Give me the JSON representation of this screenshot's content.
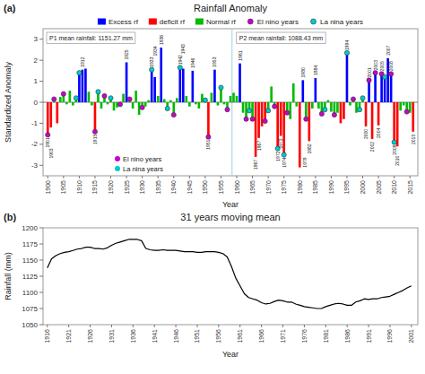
{
  "chart_data": [
    {
      "type": "bar",
      "title": "Rainfall Anomaly",
      "panel_label": "(a)",
      "x_label": "Year",
      "y_label": "Standardized Anomaly",
      "series": [
        {
          "name": "Excess rf",
          "type": "bar",
          "color": "#0000ff",
          "x": [
            1910,
            1911,
            1912,
            1925,
            1933,
            1934,
            1936,
            1942,
            1943,
            1946,
            1953,
            1961,
            1981,
            1985,
            1995,
            2002,
            2004,
            2006,
            2007,
            2008,
            2009
          ],
          "values": [
            1.4,
            1.55,
            1.6,
            1.9,
            1.55,
            1.2,
            2.6,
            1.65,
            1.6,
            1.5,
            1.55,
            1.85,
            1.05,
            1.15,
            2.35,
            1.05,
            1.4,
            1.35,
            1.2,
            2.1,
            1.35
          ]
        },
        {
          "name": "deficit rf",
          "type": "bar",
          "color": "#ff0000",
          "x": [
            1900,
            1901,
            1903,
            1915,
            1951,
            1966,
            1967,
            1968,
            1969,
            1973,
            1974,
            1975,
            1980,
            1983,
            1993,
            1994,
            2001,
            2003,
            2005,
            2010,
            2011,
            2016
          ],
          "values": [
            -1.55,
            -1.2,
            -1.0,
            -1.4,
            -1.65,
            -2.6,
            -1.7,
            -1.15,
            -0.9,
            -2.2,
            -1.6,
            -2.5,
            -3.1,
            -1.85,
            -1.0,
            -0.8,
            -1.15,
            -1.75,
            -1.1,
            -1.9,
            -2.1,
            -1.4
          ]
        },
        {
          "name": "Normal rf",
          "type": "bar",
          "color": "#00bb00",
          "x": [
            1902,
            1904,
            1905,
            1906,
            1907,
            1908,
            1909,
            1913,
            1914,
            1916,
            1917,
            1918,
            1919,
            1920,
            1921,
            1922,
            1923,
            1924,
            1926,
            1927,
            1928,
            1929,
            1930,
            1931,
            1932,
            1935,
            1937,
            1938,
            1939,
            1940,
            1941,
            1944,
            1945,
            1947,
            1948,
            1949,
            1950,
            1952,
            1954,
            1955,
            1956,
            1957,
            1958,
            1959,
            1960,
            1962,
            1963,
            1964,
            1965,
            1970,
            1971,
            1972,
            1976,
            1977,
            1978,
            1979,
            1982,
            1984,
            1986,
            1987,
            1988,
            1989,
            1990,
            1991,
            1992,
            1996,
            1997,
            1998,
            1999,
            2000,
            2012,
            2013,
            2014,
            2015
          ],
          "values": [
            0.15,
            0.25,
            0.4,
            -0.1,
            0.55,
            -0.15,
            0.2,
            0.5,
            -0.15,
            0.5,
            -0.3,
            0.3,
            -0.1,
            0.2,
            -0.4,
            -0.25,
            -0.1,
            0.4,
            0.15,
            -0.3,
            0.55,
            -0.6,
            -0.25,
            -0.2,
            0.1,
            0.3,
            0.15,
            -0.3,
            0.1,
            -0.6,
            0.2,
            0.3,
            -0.2,
            -0.1,
            -0.3,
            0.4,
            0.1,
            0.45,
            -0.15,
            0.7,
            -0.1,
            -0.35,
            0.3,
            0.45,
            0.3,
            -0.5,
            -0.8,
            -0.4,
            -0.8,
            -0.4,
            0.75,
            -0.2,
            -0.5,
            -0.8,
            0.9,
            -0.2,
            -0.8,
            -0.3,
            -0.3,
            -0.55,
            -0.35,
            0.1,
            -0.45,
            -0.6,
            -0.5,
            -0.15,
            0.15,
            -0.5,
            -0.35,
            0.2,
            -0.4,
            -0.15,
            -0.45,
            -0.5
          ]
        },
        {
          "name": "El nino years",
          "type": "scatter",
          "marker": "circle",
          "color": "#cc00cc",
          "x": [
            1900,
            1902,
            1905,
            1915,
            1918,
            1923,
            1926,
            1930,
            1940,
            1951,
            1957,
            1963,
            1965,
            1969,
            1972,
            1976,
            1982,
            1987,
            1991,
            1997,
            2002,
            2004,
            2006,
            2009,
            2014
          ],
          "values": [
            -1.55,
            0.15,
            0.4,
            -1.4,
            0.3,
            -0.1,
            0.15,
            -0.25,
            -0.6,
            -1.65,
            -0.35,
            -0.8,
            -0.8,
            -0.9,
            -0.2,
            -0.5,
            -0.8,
            -0.55,
            -0.6,
            0.15,
            1.05,
            1.4,
            1.35,
            1.35,
            -0.45
          ]
        },
        {
          "name": "La nina years",
          "type": "scatter",
          "marker": "circle",
          "color": "#00cccc",
          "x": [
            1909,
            1910,
            1916,
            1920,
            1933,
            1938,
            1942,
            1950,
            1955,
            1964,
            1970,
            1973,
            1975,
            1988,
            1995,
            1999,
            2000,
            2007,
            2010
          ],
          "values": [
            0.2,
            1.4,
            0.5,
            0.2,
            1.55,
            -0.3,
            1.65,
            0.1,
            0.7,
            -0.4,
            -0.4,
            -2.2,
            -2.5,
            -0.35,
            2.35,
            -0.35,
            0.2,
            1.2,
            -1.9
          ]
        }
      ],
      "annotations": [
        {
          "x": 1900,
          "y": -1.55,
          "text": "1901"
        },
        {
          "x": 1901,
          "y": -1.2,
          "text": "1903"
        },
        {
          "x": 1911,
          "y": 1.55,
          "text": "1912"
        },
        {
          "x": 1915,
          "y": -1.4,
          "text": "1915"
        },
        {
          "x": 1925,
          "y": 1.9,
          "text": "1925"
        },
        {
          "x": 1933,
          "y": 1.55,
          "text": "1933"
        },
        {
          "x": 1934,
          "y": 1.2,
          "text": "1934"
        },
        {
          "x": 1936,
          "y": 2.6,
          "text": "1936"
        },
        {
          "x": 1942,
          "y": 1.65,
          "text": "1942"
        },
        {
          "x": 1943,
          "y": 1.6,
          "text": "1943"
        },
        {
          "x": 1946,
          "y": 1.5,
          "text": "1946"
        },
        {
          "x": 1951,
          "y": -1.65,
          "text": "1951"
        },
        {
          "x": 1953,
          "y": 1.55,
          "text": "1953"
        },
        {
          "x": 1961,
          "y": 1.85,
          "text": "1961"
        },
        {
          "x": 1966,
          "y": -2.6,
          "text": "1967"
        },
        {
          "x": 1967,
          "y": -1.7,
          "text": "1967"
        },
        {
          "x": 1973,
          "y": -2.2,
          "text": "1972"
        },
        {
          "x": 1974,
          "y": -1.6,
          "text": "1973"
        },
        {
          "x": 1975,
          "y": -2.5,
          "text": "1974"
        },
        {
          "x": 1980,
          "y": -3.1,
          "text": "1979"
        },
        {
          "x": 1981,
          "y": 1.05,
          "text": "1980"
        },
        {
          "x": 1983,
          "y": -1.85,
          "text": "1982"
        },
        {
          "x": 1985,
          "y": 1.15,
          "text": "1984"
        },
        {
          "x": 1995,
          "y": 2.35,
          "text": "1994"
        },
        {
          "x": 2001,
          "y": -1.15,
          "text": "2000"
        },
        {
          "x": 2002,
          "y": 1.05,
          "text": "2001"
        },
        {
          "x": 2003,
          "y": -1.75,
          "text": "2002"
        },
        {
          "x": 2004,
          "y": 1.4,
          "text": "2003"
        },
        {
          "x": 2005,
          "y": -1.1,
          "text": "2004"
        },
        {
          "x": 2006,
          "y": 1.35,
          "text": "2005"
        },
        {
          "x": 2008,
          "y": 2.1,
          "text": "2007"
        },
        {
          "x": 2009,
          "y": 1.35,
          "text": "2008"
        },
        {
          "x": 2010,
          "y": -1.9,
          "text": "2009"
        },
        {
          "x": 2011,
          "y": -2.1,
          "text": "2010"
        },
        {
          "x": 2016,
          "y": -1.4,
          "text": "2015"
        }
      ],
      "text_boxes": [
        "P1 mean rainfall: 1151.27 mm",
        "P2 mean rainfall: 1088.43 mm"
      ],
      "divider_x": 1958.5,
      "xlim": [
        1898.5,
        2017.5
      ],
      "xticks": [
        1900,
        1905,
        1910,
        1915,
        1920,
        1925,
        1930,
        1935,
        1940,
        1945,
        1950,
        1955,
        1960,
        1965,
        1970,
        1975,
        1980,
        1985,
        1990,
        1995,
        2000,
        2005,
        2010,
        2015
      ],
      "ylim": [
        -3.5,
        3.5
      ],
      "yticks": [
        -3,
        -2,
        -1,
        0,
        1,
        2,
        3
      ],
      "grid": false,
      "legend": "top"
    },
    {
      "type": "line",
      "title": "31 years moving mean",
      "panel_label": "(b)",
      "x_label": "Year",
      "y_label": "Rainfall (mm)",
      "color": "#000000",
      "x": [
        1916,
        1917,
        1918,
        1919,
        1920,
        1921,
        1922,
        1923,
        1924,
        1925,
        1926,
        1927,
        1928,
        1929,
        1930,
        1931,
        1932,
        1933,
        1934,
        1935,
        1936,
        1937,
        1938,
        1939,
        1940,
        1941,
        1942,
        1943,
        1944,
        1945,
        1946,
        1947,
        1948,
        1949,
        1950,
        1951,
        1952,
        1953,
        1954,
        1955,
        1956,
        1957,
        1958,
        1959,
        1960,
        1961,
        1962,
        1963,
        1964,
        1965,
        1966,
        1967,
        1968,
        1969,
        1970,
        1971,
        1972,
        1973,
        1974,
        1975,
        1976,
        1977,
        1978,
        1979,
        1980,
        1981,
        1982,
        1983,
        1984,
        1985,
        1986,
        1987,
        1988,
        1989,
        1990,
        1991,
        1992,
        1993,
        1994,
        1995,
        1996,
        1997,
        1998,
        1999,
        2000,
        2001
      ],
      "values": [
        1138,
        1152,
        1157,
        1160,
        1162,
        1163,
        1165,
        1167,
        1168,
        1170,
        1170,
        1168,
        1168,
        1167,
        1169,
        1173,
        1176,
        1178,
        1180,
        1182,
        1182,
        1182,
        1180,
        1168,
        1166,
        1165,
        1165,
        1166,
        1165,
        1165,
        1165,
        1164,
        1163,
        1163,
        1163,
        1162,
        1162,
        1163,
        1163,
        1163,
        1162,
        1160,
        1155,
        1140,
        1122,
        1110,
        1098,
        1092,
        1090,
        1088,
        1084,
        1082,
        1083,
        1086,
        1088,
        1087,
        1085,
        1085,
        1082,
        1080,
        1078,
        1077,
        1076,
        1075,
        1075,
        1078,
        1080,
        1082,
        1083,
        1082,
        1080,
        1080,
        1085,
        1087,
        1090,
        1089,
        1090,
        1090,
        1092,
        1093,
        1094,
        1097,
        1100,
        1103,
        1107,
        1110
      ],
      "xlim": [
        1915,
        2002.5
      ],
      "xticks": [
        1916,
        1921,
        1926,
        1931,
        1936,
        1941,
        1946,
        1951,
        1956,
        1961,
        1966,
        1971,
        1976,
        1981,
        1986,
        1991,
        1996,
        2001
      ],
      "ylim": [
        1050,
        1200
      ],
      "yticks": [
        1050,
        1075,
        1100,
        1125,
        1150,
        1175,
        1200
      ],
      "grid": false
    }
  ]
}
